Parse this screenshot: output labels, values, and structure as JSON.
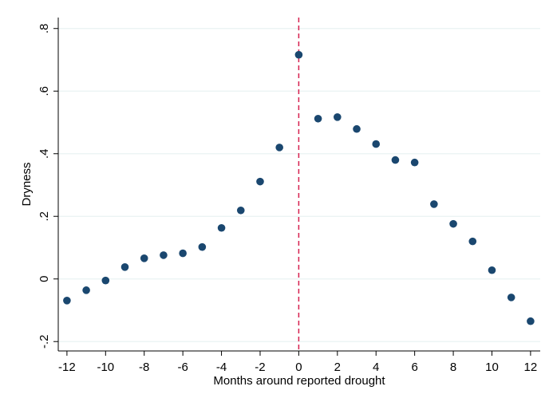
{
  "chart_data": {
    "type": "scatter",
    "x_label": "Months around reported drought",
    "y_label": "Dryness",
    "x": [
      -12,
      -11,
      -10,
      -9,
      -8,
      -7,
      -6,
      -5,
      -4,
      -3,
      -2,
      -1,
      0,
      1,
      2,
      3,
      4,
      5,
      6,
      7,
      8,
      9,
      10,
      11,
      12
    ],
    "values": [
      -0.069,
      -0.036,
      -0.005,
      0.038,
      0.066,
      0.076,
      0.082,
      0.102,
      0.163,
      0.219,
      0.311,
      0.42,
      0.716,
      0.512,
      0.517,
      0.479,
      0.431,
      0.38,
      0.372,
      0.239,
      0.176,
      0.12,
      0.028,
      -0.059,
      -0.135
    ],
    "color": "#1a476f",
    "xlim": [
      -12.45,
      12.5
    ],
    "ylim": [
      -0.23,
      0.835
    ],
    "xticks": [
      -12,
      -10,
      -8,
      -6,
      -4,
      -2,
      0,
      2,
      4,
      6,
      8,
      10,
      12
    ],
    "yticks": [
      {
        "value": -0.2,
        "label": "-.2"
      },
      0,
      {
        "value": 0.2,
        "label": ".2"
      },
      {
        "value": 0.4,
        "label": ".4"
      },
      {
        "value": 0.6,
        "label": ".6"
      },
      {
        "value": 0.8,
        "label": ".8"
      }
    ],
    "grid": true,
    "reference_line": {
      "x": 0,
      "color": "#d6204e",
      "style": "dashed"
    }
  }
}
